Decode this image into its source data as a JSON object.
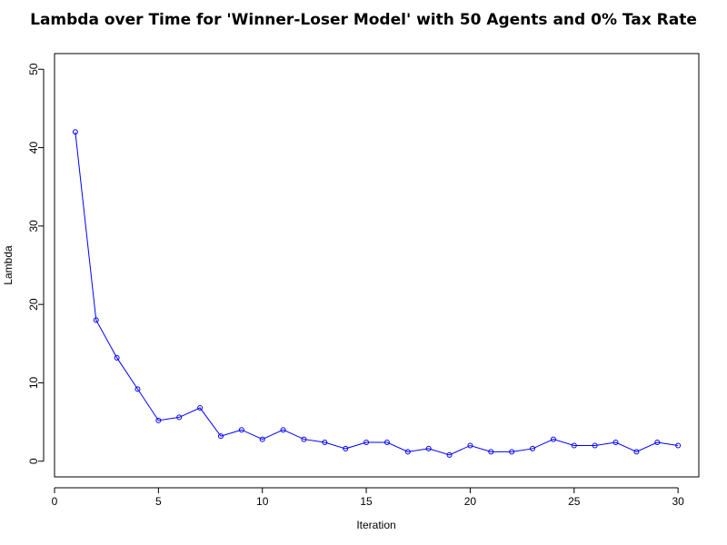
{
  "chart_data": {
    "type": "line",
    "title": "Lambda over Time for 'Winner-Loser Model' with 50 Agents and 0% Tax Rate",
    "xlabel": "Iteration",
    "ylabel": "Lambda",
    "xlim": [
      0,
      31
    ],
    "ylim": [
      -2,
      52
    ],
    "x_ticks": [
      0,
      5,
      10,
      15,
      20,
      25,
      30
    ],
    "y_ticks": [
      0,
      10,
      20,
      30,
      40,
      50
    ],
    "grid": false,
    "series": [
      {
        "color": "#0000ff",
        "marker": "open-circle",
        "x": [
          1,
          2,
          3,
          4,
          5,
          6,
          7,
          8,
          9,
          10,
          11,
          12,
          13,
          14,
          15,
          16,
          17,
          18,
          19,
          20,
          21,
          22,
          23,
          24,
          25,
          26,
          27,
          28,
          29,
          30
        ],
        "y": [
          42,
          18,
          13.2,
          9.2,
          5.2,
          5.6,
          6.8,
          3.2,
          4,
          2.8,
          4,
          2.8,
          2.4,
          1.6,
          2.4,
          2.4,
          1.2,
          1.6,
          0.8,
          2,
          1.2,
          1.2,
          1.6,
          2.8,
          2,
          2,
          2.4,
          1.2,
          2.4,
          2
        ]
      }
    ]
  }
}
